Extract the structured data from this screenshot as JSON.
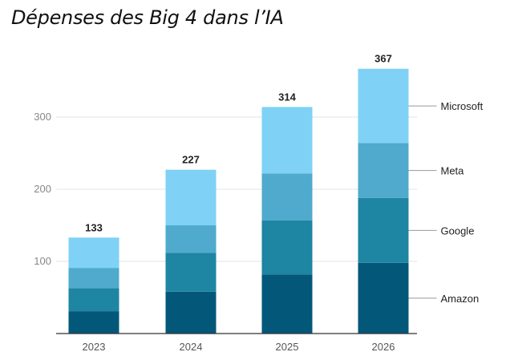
{
  "chart_data": {
    "type": "bar",
    "stacked": true,
    "title": "Dépenses des Big 4 dans l’IA",
    "categories": [
      "2023",
      "2024",
      "2025",
      "2026"
    ],
    "series": [
      {
        "name": "Amazon",
        "values": [
          31,
          58,
          82,
          98
        ],
        "color": "#03587a"
      },
      {
        "name": "Google",
        "values": [
          32,
          54,
          75,
          90
        ],
        "color": "#1e85a3"
      },
      {
        "name": "Meta",
        "values": [
          28,
          38,
          65,
          76
        ],
        "color": "#4faacd"
      },
      {
        "name": "Microsoft",
        "values": [
          42,
          77,
          92,
          103
        ],
        "color": "#7fd2f5"
      }
    ],
    "totals": [
      "133",
      "227",
      "314",
      "367"
    ],
    "yticks": [
      "100",
      "200",
      "300"
    ],
    "ylim": [
      0,
      380
    ],
    "grid": true,
    "legend_position": "right"
  }
}
